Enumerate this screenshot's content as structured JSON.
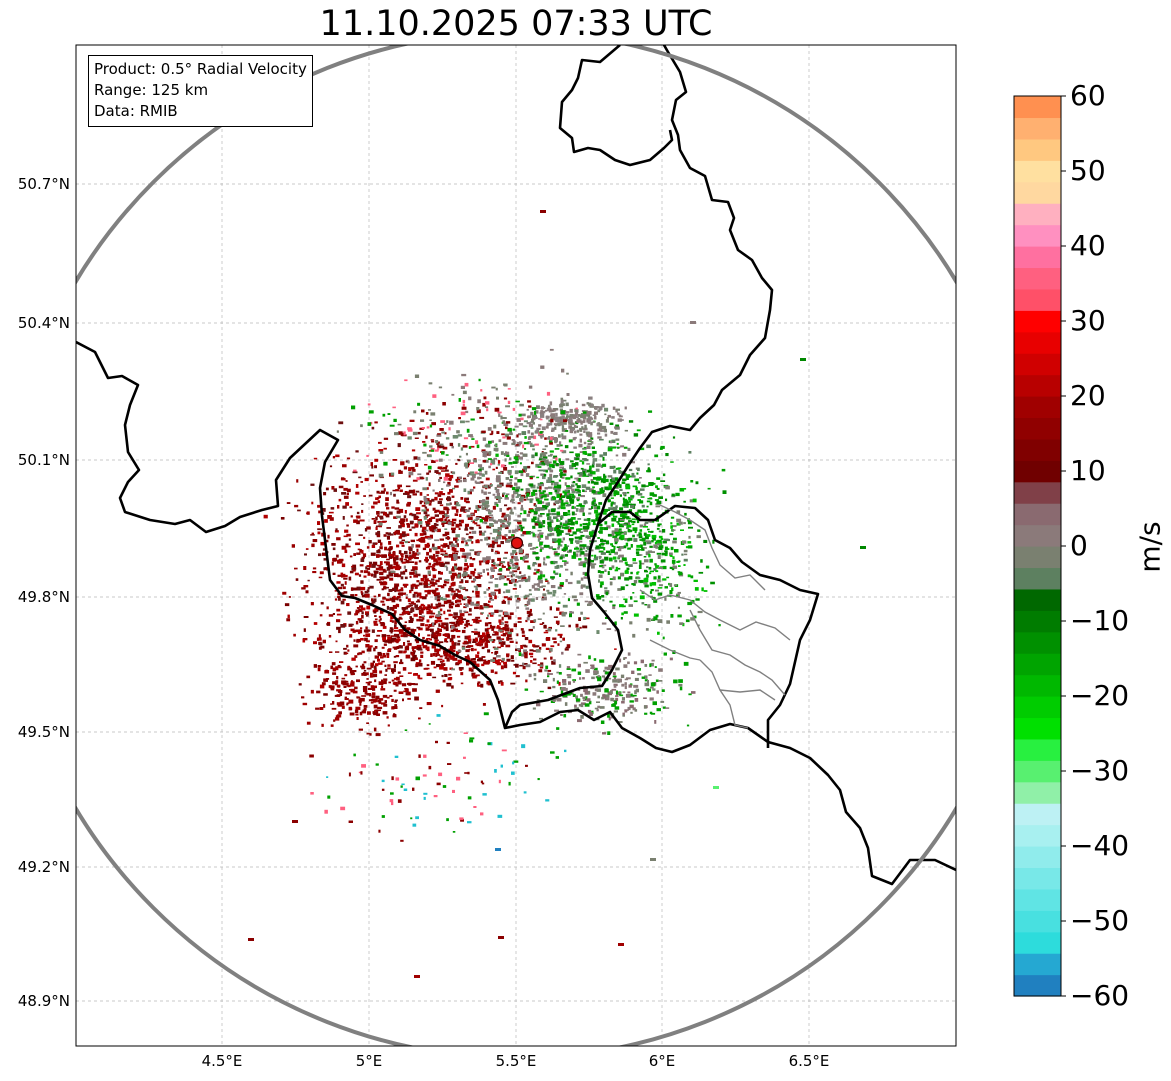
{
  "title": "11.10.2025 07:33 UTC",
  "info_box": {
    "product": "Product: 0.5° Radial Velocity",
    "range": "Range: 125 km",
    "data": "Data: RMIB"
  },
  "latitude_labels": [
    "50.7°N",
    "50.4°N",
    "50.1°N",
    "49.8°N",
    "49.5°N",
    "49.2°N",
    "48.9°N"
  ],
  "longitude_labels": [
    "4.5°E",
    "5°E",
    "5.5°E",
    "6°E",
    "6.5°E"
  ],
  "colorbar": {
    "unit": "m/s",
    "ticks": [
      "60",
      "50",
      "40",
      "30",
      "20",
      "10",
      "0",
      "−10",
      "−20",
      "−30",
      "−40",
      "−50",
      "−60"
    ],
    "min": -60,
    "max": 60,
    "colors": [
      "#2080c0",
      "#25a8d2",
      "#2ddcdc",
      "#48e0e0",
      "#60e4e4",
      "#78e8e8",
      "#90ecec",
      "#a8f0f0",
      "#bdf1f4",
      "#90f0a8",
      "#58f070",
      "#28f040",
      "#00e000",
      "#00cc00",
      "#00b800",
      "#00a400",
      "#009000",
      "#007c00",
      "#006800",
      "#5d8060",
      "#7a8070",
      "#8b7a7a",
      "#8a6a70",
      "#804048",
      "#700000",
      "#800000",
      "#900000",
      "#a00000",
      "#b80000",
      "#d00000",
      "#e80000",
      "#ff0000",
      "#ff5068",
      "#ff6080",
      "#ff70a0",
      "#ff90c0",
      "#ffb0c0",
      "#ffd8a0",
      "#ffe0a0",
      "#ffc880",
      "#ffb070",
      "#ff9050"
    ]
  },
  "radar_site": {
    "name": "radar-site-marker",
    "color": "#e01010"
  },
  "colors": {
    "range_ring": "#808080",
    "border": "#000000",
    "grid": "#b0b0b0"
  }
}
